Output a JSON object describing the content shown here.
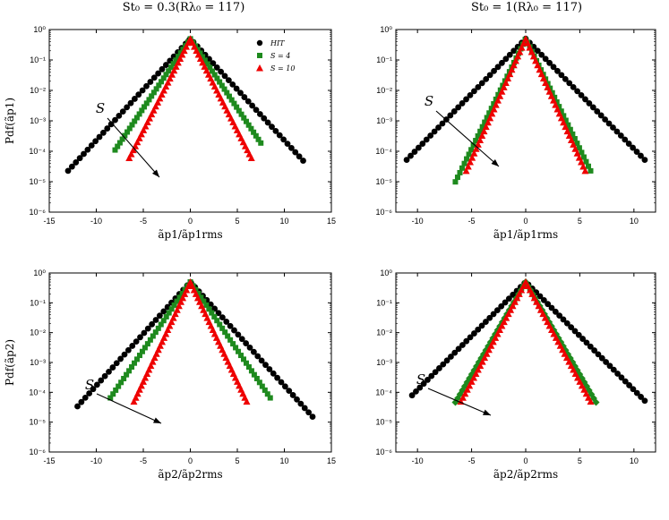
{
  "figure": {
    "col_titles": [
      "St₀ = 0.3(Rλ₀ = 117)",
      "St₀ = 1(Rλ₀ = 117)"
    ],
    "arrow_label": "S",
    "colors": {
      "HIT": "#000000",
      "S4": "#1e8a1e",
      "S10": "#ee0000"
    }
  },
  "chart_data": [
    {
      "type": "scatter",
      "title": "St₀ = 0.3(Rλ₀ = 117)",
      "xlabel": "ãp1/ãp1rms",
      "ylabel": "Pdf(ãp1)",
      "xlim": [
        -15,
        15
      ],
      "xticks": [
        "-15",
        "-10",
        "-5",
        "0",
        "5",
        "10",
        "15"
      ],
      "ylim": [
        1e-06,
        1
      ],
      "yscale": "log",
      "yticks": [
        "10⁻⁶",
        "10⁻⁵",
        "10⁻⁴",
        "10⁻³",
        "10⁻²",
        "10⁻¹",
        "10⁰"
      ],
      "legend": {
        "position": "top-right",
        "entries": [
          "HIT",
          "S = 4",
          "S = 10"
        ]
      },
      "series": [
        {
          "name": "HIT",
          "marker": "circle",
          "color": "#000000",
          "xmin": -13,
          "xmax": 12,
          "width": 1.3
        },
        {
          "name": "S = 4",
          "marker": "square",
          "color": "#1e8a1e",
          "xmin": -8,
          "xmax": 7.5,
          "width": 0.95
        },
        {
          "name": "S = 10",
          "marker": "triangle",
          "color": "#ee0000",
          "xmin": -6.5,
          "xmax": 6.5,
          "width": 0.72
        }
      ]
    },
    {
      "type": "scatter",
      "title": "St₀ = 1(Rλ₀ = 117)",
      "xlabel": "ãp1/ãp1rms",
      "ylabel": "",
      "xlim": [
        -12,
        12
      ],
      "xticks": [
        "-10",
        "-5",
        "0",
        "5",
        "10"
      ],
      "ylim": [
        1e-06,
        1
      ],
      "yscale": "log",
      "yticks": [
        "10⁻⁶",
        "10⁻⁵",
        "10⁻⁴",
        "10⁻³",
        "10⁻²",
        "10⁻¹",
        "10⁰"
      ],
      "series": [
        {
          "name": "HIT",
          "marker": "circle",
          "color": "#000000",
          "xmin": -11,
          "xmax": 11,
          "width": 1.2
        },
        {
          "name": "S = 4",
          "marker": "square",
          "color": "#1e8a1e",
          "xmin": -6.5,
          "xmax": 6,
          "width": 0.6
        },
        {
          "name": "S = 10",
          "marker": "triangle",
          "color": "#ee0000",
          "xmin": -5.5,
          "xmax": 5.5,
          "width": 0.55
        }
      ]
    },
    {
      "type": "scatter",
      "title": "",
      "xlabel": "ãp2/ãp2rms",
      "ylabel": "Pdf(ãp2)",
      "xlim": [
        -15,
        15
      ],
      "xticks": [
        "-15",
        "-10",
        "-5",
        "0",
        "5",
        "10",
        "15"
      ],
      "ylim": [
        1e-06,
        1
      ],
      "yscale": "log",
      "yticks": [
        "10⁻⁶",
        "10⁻⁵",
        "10⁻⁴",
        "10⁻³",
        "10⁻²",
        "10⁻¹",
        "10⁰"
      ],
      "series": [
        {
          "name": "HIT",
          "marker": "circle",
          "color": "#000000",
          "xmin": -12,
          "xmax": 13,
          "width": 1.25
        },
        {
          "name": "S = 4",
          "marker": "square",
          "color": "#1e8a1e",
          "xmin": -8.5,
          "xmax": 8.5,
          "width": 0.95
        },
        {
          "name": "S = 10",
          "marker": "triangle",
          "color": "#ee0000",
          "xmin": -6,
          "xmax": 6,
          "width": 0.65
        }
      ]
    },
    {
      "type": "scatter",
      "title": "",
      "xlabel": "ãp2/ãp2rms",
      "ylabel": "",
      "xlim": [
        -12,
        12
      ],
      "xticks": [
        "-10",
        "-5",
        "0",
        "5",
        "10"
      ],
      "ylim": [
        1e-06,
        1
      ],
      "yscale": "log",
      "yticks": [
        "10⁻⁶",
        "10⁻⁵",
        "10⁻⁴",
        "10⁻³",
        "10⁻²",
        "10⁻¹",
        "10⁰"
      ],
      "series": [
        {
          "name": "HIT",
          "marker": "circle",
          "color": "#000000",
          "xmin": -10.5,
          "xmax": 11,
          "width": 1.2
        },
        {
          "name": "S = 4",
          "marker": "diamond",
          "color": "#1e8a1e",
          "xmin": -6.5,
          "xmax": 6.5,
          "width": 0.7
        },
        {
          "name": "S = 10",
          "marker": "triangle",
          "color": "#ee0000",
          "xmin": -6,
          "xmax": 6,
          "width": 0.65
        }
      ]
    }
  ]
}
